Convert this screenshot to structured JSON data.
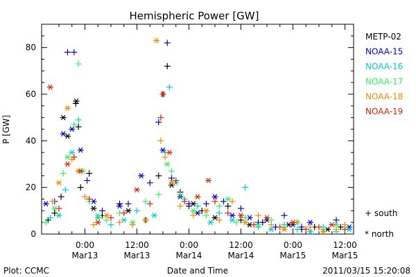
{
  "chart_data": {
    "type": "scatter",
    "title": "Hemispheric Power [GW]",
    "xlabel": "Date and Time",
    "ylabel": "P [GW]",
    "ylim": [
      0,
      90
    ],
    "xlim_hours": [
      -10,
      62
    ],
    "yticks": [
      "0",
      "20",
      "40",
      "60",
      "80"
    ],
    "yticks_values": [
      0,
      20,
      40,
      60,
      80
    ],
    "xticks": [
      {
        "hours": 0,
        "time": "0:00",
        "date": "Mar13"
      },
      {
        "hours": 12,
        "time": "12:00",
        "date": "Mar13"
      },
      {
        "hours": 24,
        "time": "0:00",
        "date": "Mar14"
      },
      {
        "hours": 36,
        "time": "12:00",
        "date": "Mar14"
      },
      {
        "hours": 48,
        "time": "0:00",
        "date": "Mar15"
      },
      {
        "hours": 60,
        "time": "12:00",
        "date": "Mar15"
      }
    ],
    "markers": {
      "south": "+",
      "north": "*"
    },
    "marker_legend": [
      {
        "symbol": "+",
        "label": "south"
      },
      {
        "symbol": "*",
        "label": "north"
      }
    ],
    "series": [
      {
        "name": "METP-02",
        "color": "#000000",
        "points": [
          [
            -8.5,
            6,
            "s"
          ],
          [
            -7,
            9,
            "s"
          ],
          [
            -5.5,
            16,
            "s"
          ],
          [
            -5,
            50,
            "n"
          ],
          [
            -4,
            42,
            "n"
          ],
          [
            -2,
            57,
            "n"
          ],
          [
            -2.1,
            56,
            "s"
          ],
          [
            -1.5,
            46,
            "s"
          ],
          [
            -1,
            20,
            "s"
          ],
          [
            1,
            26,
            "s"
          ],
          [
            2,
            11,
            "n"
          ],
          [
            4,
            8,
            "s"
          ],
          [
            8,
            13,
            "s"
          ],
          [
            10,
            10,
            "n"
          ],
          [
            14,
            6,
            "s"
          ],
          [
            17,
            25,
            "s"
          ],
          [
            18,
            60,
            "s"
          ],
          [
            19,
            72,
            "s"
          ],
          [
            20,
            21,
            "n"
          ],
          [
            22,
            18,
            "s"
          ],
          [
            24,
            12,
            "s"
          ],
          [
            25,
            13,
            "n"
          ],
          [
            27,
            10,
            "s"
          ],
          [
            30,
            7,
            "n"
          ],
          [
            33,
            12,
            "s"
          ],
          [
            36,
            6,
            "s"
          ],
          [
            38,
            4,
            "n"
          ],
          [
            41,
            5,
            "s"
          ],
          [
            44,
            3,
            "s"
          ],
          [
            47,
            4,
            "n"
          ],
          [
            50,
            2,
            "s"
          ],
          [
            53,
            3,
            "s"
          ],
          [
            56,
            2,
            "n"
          ],
          [
            59,
            3,
            "s"
          ]
        ]
      },
      {
        "name": "NOAA-15",
        "color": "#0000cc",
        "points": [
          [
            -9,
            13,
            "n"
          ],
          [
            -7,
            14,
            "s"
          ],
          [
            -5,
            43,
            "n"
          ],
          [
            -4,
            78,
            "s"
          ],
          [
            -3,
            45,
            "n"
          ],
          [
            -2.5,
            78,
            "s"
          ],
          [
            -1,
            36,
            "n"
          ],
          [
            0.5,
            23,
            "s"
          ],
          [
            2,
            14,
            "n"
          ],
          [
            4,
            10,
            "s"
          ],
          [
            8,
            12,
            "n"
          ],
          [
            10,
            13,
            "s"
          ],
          [
            13,
            25,
            "n"
          ],
          [
            15,
            22,
            "s"
          ],
          [
            17,
            48,
            "s"
          ],
          [
            18,
            36,
            "n"
          ],
          [
            19,
            82,
            "s"
          ],
          [
            20,
            24,
            "s"
          ],
          [
            22,
            16,
            "n"
          ],
          [
            24,
            13,
            "s"
          ],
          [
            26,
            9,
            "n"
          ],
          [
            28,
            13,
            "s"
          ],
          [
            30,
            16,
            "n"
          ],
          [
            32,
            14,
            "s"
          ],
          [
            34,
            8,
            "n"
          ],
          [
            36,
            11,
            "s"
          ],
          [
            38,
            7,
            "n"
          ],
          [
            40,
            5,
            "s"
          ],
          [
            42,
            6,
            "n"
          ],
          [
            44,
            3,
            "s"
          ],
          [
            46,
            8,
            "s"
          ],
          [
            48,
            4,
            "n"
          ],
          [
            50,
            3,
            "s"
          ],
          [
            52,
            5,
            "n"
          ],
          [
            55,
            2,
            "s"
          ],
          [
            58,
            6,
            "s"
          ],
          [
            61,
            3,
            "n"
          ]
        ]
      },
      {
        "name": "NOAA-16",
        "color": "#00cccc",
        "points": [
          [
            -8,
            7,
            "s"
          ],
          [
            -6,
            8,
            "n"
          ],
          [
            -4.5,
            19,
            "s"
          ],
          [
            -3,
            35,
            "n"
          ],
          [
            -1.5,
            49,
            "s"
          ],
          [
            1,
            15,
            "s"
          ],
          [
            3,
            7,
            "n"
          ],
          [
            6,
            4,
            "s"
          ],
          [
            9,
            6,
            "n"
          ],
          [
            12,
            10,
            "s"
          ],
          [
            16,
            8,
            "n"
          ],
          [
            18.5,
            35,
            "s"
          ],
          [
            19.5,
            63,
            "s"
          ],
          [
            21,
            22,
            "n"
          ],
          [
            23,
            15,
            "s"
          ],
          [
            26,
            12,
            "s"
          ],
          [
            29,
            5,
            "n"
          ],
          [
            31,
            9,
            "s"
          ],
          [
            34,
            6,
            "n"
          ],
          [
            37,
            20,
            "s"
          ],
          [
            40,
            3,
            "s"
          ],
          [
            43,
            2,
            "n"
          ],
          [
            46,
            4,
            "s"
          ],
          [
            49,
            2,
            "s"
          ],
          [
            52,
            1,
            "n"
          ],
          [
            55,
            3,
            "s"
          ],
          [
            58,
            1,
            "s"
          ],
          [
            61,
            2,
            "n"
          ]
        ]
      },
      {
        "name": "NOAA-17",
        "color": "#33ee66",
        "points": [
          [
            -9,
            5,
            "s"
          ],
          [
            -7,
            11,
            "n"
          ],
          [
            -5,
            26,
            "s"
          ],
          [
            -4,
            33,
            "n"
          ],
          [
            -2.5,
            47,
            "s"
          ],
          [
            -1.5,
            73,
            "s"
          ],
          [
            -0.5,
            27,
            "n"
          ],
          [
            1,
            14,
            "s"
          ],
          [
            3,
            8,
            "n"
          ],
          [
            5,
            6,
            "s"
          ],
          [
            8,
            9,
            "s"
          ],
          [
            11,
            5,
            "n"
          ],
          [
            14,
            14,
            "s"
          ],
          [
            17,
            17,
            "s"
          ],
          [
            19,
            30,
            "n"
          ],
          [
            20,
            27,
            "s"
          ],
          [
            22,
            17,
            "s"
          ],
          [
            25,
            10,
            "n"
          ],
          [
            28,
            8,
            "s"
          ],
          [
            31,
            12,
            "s"
          ],
          [
            33,
            15,
            "n"
          ],
          [
            35,
            5,
            "s"
          ],
          [
            37,
            7,
            "s"
          ],
          [
            40,
            4,
            "n"
          ],
          [
            43,
            6,
            "s"
          ],
          [
            46,
            3,
            "s"
          ],
          [
            49,
            5,
            "n"
          ],
          [
            52,
            3,
            "s"
          ],
          [
            55,
            2,
            "s"
          ],
          [
            58,
            4,
            "n"
          ]
        ]
      },
      {
        "name": "NOAA-18",
        "color": "#ee8800",
        "points": [
          [
            -7.5,
            14,
            "s"
          ],
          [
            -6,
            22,
            "n"
          ],
          [
            -4,
            54,
            "n"
          ],
          [
            -3,
            32,
            "s"
          ],
          [
            -1.5,
            27,
            "n"
          ],
          [
            0,
            16,
            "s"
          ],
          [
            2,
            4,
            "s"
          ],
          [
            5,
            8,
            "n"
          ],
          [
            8,
            5,
            "s"
          ],
          [
            11,
            4,
            "s"
          ],
          [
            14,
            6,
            "n"
          ],
          [
            16.5,
            83,
            "n"
          ],
          [
            17.5,
            40,
            "s"
          ],
          [
            18.5,
            33,
            "s"
          ],
          [
            20,
            22,
            "n"
          ],
          [
            22,
            12,
            "s"
          ],
          [
            25,
            8,
            "s"
          ],
          [
            28,
            10,
            "n"
          ],
          [
            31,
            6,
            "s"
          ],
          [
            34,
            14,
            "s"
          ],
          [
            37,
            5,
            "n"
          ],
          [
            40,
            8,
            "s"
          ],
          [
            43,
            4,
            "s"
          ],
          [
            46,
            2,
            "n"
          ],
          [
            49,
            5,
            "s"
          ],
          [
            52,
            3,
            "s"
          ],
          [
            55,
            1,
            "n"
          ],
          [
            58,
            2,
            "s"
          ],
          [
            60,
            4,
            "s"
          ]
        ]
      },
      {
        "name": "NOAA-19",
        "color": "#dd2200",
        "points": [
          [
            -8,
            63,
            "n"
          ],
          [
            -6,
            11,
            "s"
          ],
          [
            -4,
            30,
            "n"
          ],
          [
            -2.5,
            33,
            "s"
          ],
          [
            -1,
            27,
            "n"
          ],
          [
            1,
            15,
            "s"
          ],
          [
            3,
            5,
            "n"
          ],
          [
            6,
            7,
            "s"
          ],
          [
            9,
            9,
            "s"
          ],
          [
            12,
            19,
            "n"
          ],
          [
            15,
            13,
            "s"
          ],
          [
            17.5,
            50,
            "s"
          ],
          [
            18,
            60,
            "n"
          ],
          [
            19.5,
            35,
            "n"
          ],
          [
            21,
            23,
            "s"
          ],
          [
            23,
            14,
            "s"
          ],
          [
            26,
            16,
            "n"
          ],
          [
            28.5,
            23,
            "n"
          ],
          [
            30,
            14,
            "s"
          ],
          [
            33,
            9,
            "s"
          ],
          [
            36,
            8,
            "n"
          ],
          [
            39,
            4,
            "s"
          ],
          [
            42,
            7,
            "n"
          ],
          [
            45,
            3,
            "s"
          ],
          [
            48,
            5,
            "n"
          ],
          [
            51,
            2,
            "s"
          ],
          [
            54,
            3,
            "s"
          ],
          [
            57,
            4,
            "n"
          ],
          [
            60,
            2,
            "s"
          ]
        ]
      }
    ]
  },
  "footer": {
    "plot_source": "Plot: CCMC",
    "timestamp": "2011/03/15 15:20:08"
  }
}
